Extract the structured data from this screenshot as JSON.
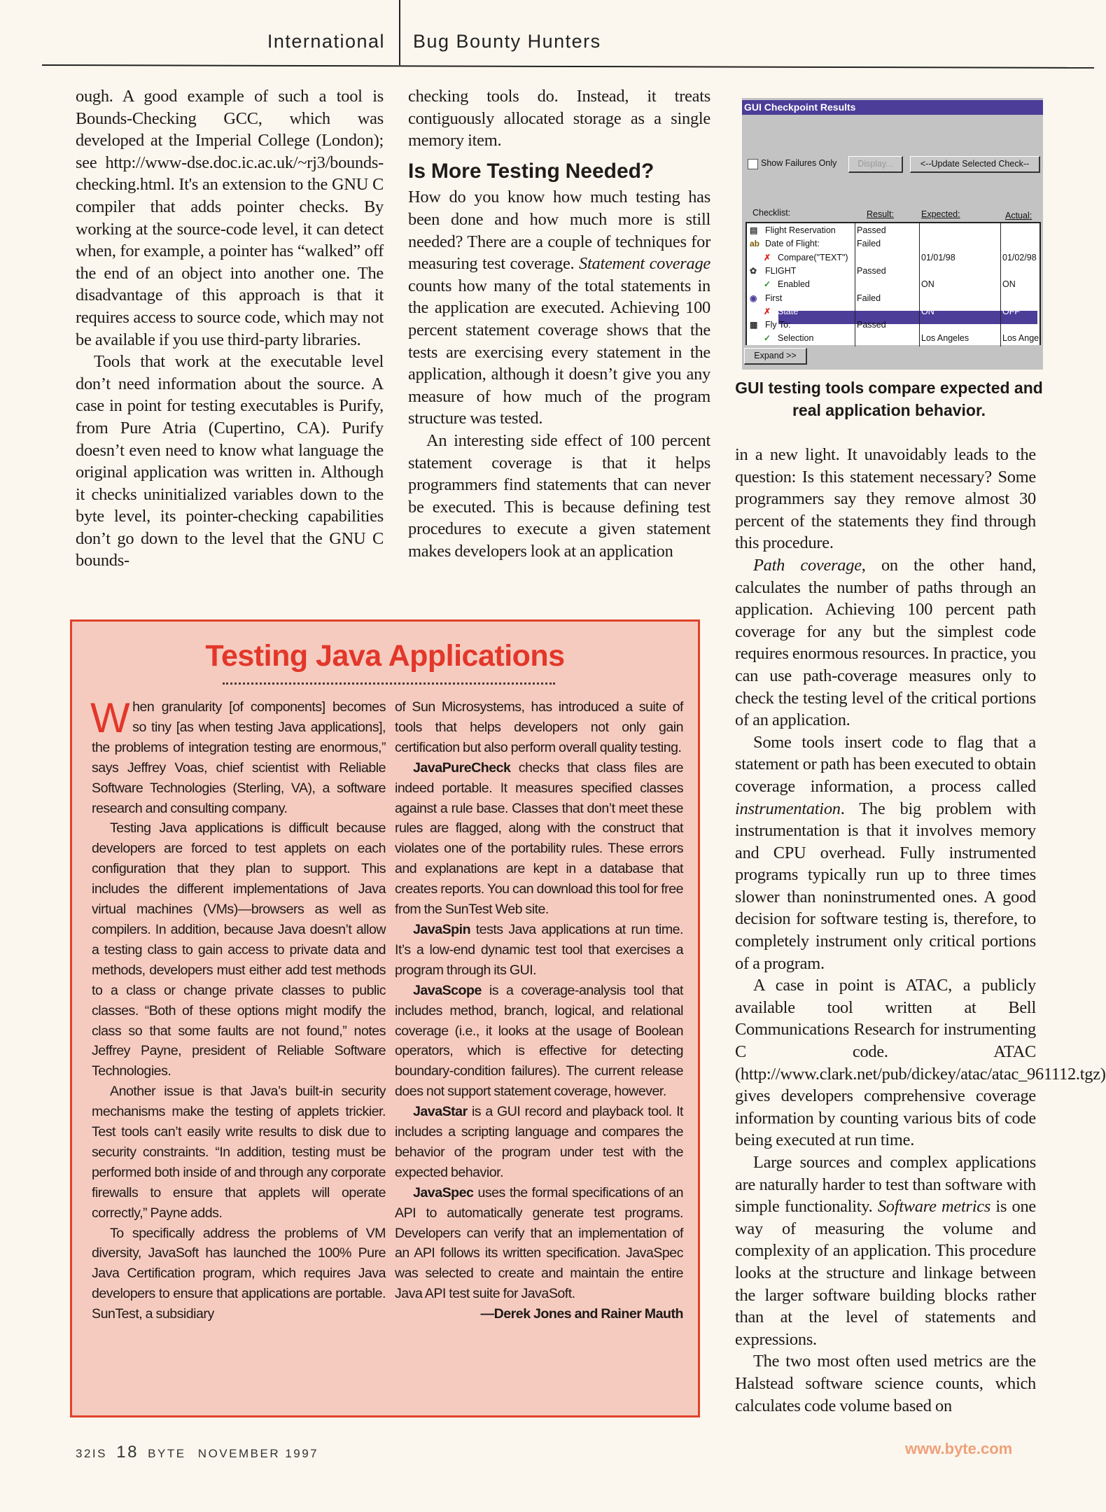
{
  "header": {
    "section": "International",
    "title": "Bug Bounty Hunters"
  },
  "col1": {
    "p1": "ough. A good example of such a tool is Bounds-Checking GCC, which was developed at the Imperial College (London); see http://www-dse.doc.ic.ac.uk/~rj3/bounds-checking.html. It's an extension to the GNU C compiler that adds pointer checks. By working at the source-code level, it can detect when, for example, a pointer has “walked” off the end of an object into another one. The disadvantage of this approach is that it requires access to source code, which may not be available if you use third-party libraries.",
    "p2": "Tools that work at the executable level don’t need information about the source. A case in point for testing executables is Purify, from Pure Atria (Cupertino, CA). Purify doesn’t even need to know what language the original application was written in. Although it checks uninitialized variables down to the byte level, its pointer-checking capabilities don’t go down to the level that the GNU C bounds-"
  },
  "col2": {
    "p1": "checking tools do. Instead, it treats contiguously allocated storage as a single memory item.",
    "heading": "Is More Testing Needed?",
    "p2a": "How do you know how much testing has been done and how much more is still needed? There are a couple of techniques for measuring test coverage. ",
    "p2_term": "Statement coverage",
    "p2b": " counts how many of the total statements in the application are executed. Achieving 100 percent statement coverage shows that the tests are exercising every statement in the application, although it doesn’t give you any measure of how much of the program structure was tested.",
    "p3": "An interesting side effect of 100 percent statement coverage is that it helps programmers find statements that can never be executed. This is because defining test procedures to execute a given statement makes developers look at an application"
  },
  "figure": {
    "window_title": "GUI Checkpoint Results",
    "show_failures_label": "Show Failures Only",
    "display_button": "Display...",
    "update_button": "<--Update Selected Check--",
    "columns": [
      "Checklist:",
      "Result:",
      "Expected:",
      "Actual:"
    ],
    "rows": [
      {
        "icon": "window-icon",
        "name": "Flight Reservation",
        "result": "Passed",
        "expected": "",
        "actual": ""
      },
      {
        "icon": "edit-field-icon",
        "name": "Date of Flight:",
        "result": "Failed",
        "expected": "",
        "actual": ""
      },
      {
        "icon": "cross-icon",
        "name": "Compare(\"TEXT\")",
        "result": "",
        "expected": "01/01/98",
        "actual": "01/02/98"
      },
      {
        "icon": "button-icon",
        "name": "FLIGHT",
        "result": "Passed",
        "expected": "",
        "actual": ""
      },
      {
        "icon": "check-icon",
        "name": "Enabled",
        "result": "",
        "expected": "ON",
        "actual": "ON"
      },
      {
        "icon": "radio-icon",
        "name": "First",
        "result": "Failed",
        "expected": "",
        "actual": ""
      },
      {
        "icon": "cross-icon",
        "name": "State",
        "result": "",
        "expected": "ON",
        "actual": "OFF"
      },
      {
        "icon": "list-icon",
        "name": "Fly To:",
        "result": "Passed",
        "expected": "",
        "actual": ""
      },
      {
        "icon": "check-icon",
        "name": "Selection",
        "result": "",
        "expected": "Los Angeles",
        "actual": "Los Angel"
      }
    ],
    "selected_row": "State",
    "expand_button": "Expand >>",
    "caption": "GUI testing tools compare expected and real application behavior."
  },
  "col3": {
    "p1": "in a new light. It unavoidably leads to the question: Is this statement necessary? Some programmers say they remove almost 30 percent of the statements they find through this procedure.",
    "p2_term": "Path coverage",
    "p2": ", on the other hand, calculates the number of paths through an application. Achieving 100 percent path coverage for any but the simplest code requires enormous resources. In practice, you can use path-coverage measures only to check the testing level of the critical portions of an application.",
    "p3a": "Some tools insert code to flag that a statement or path has been executed to obtain coverage information, a process called ",
    "p3_term": "instrumentation",
    "p3b": ". The big problem with instrumentation is that it involves memory and CPU overhead. Fully instrumented programs typically run up to three times slower than noninstrumented ones. A good decision for software testing is, therefore, to completely instrument only critical portions of a program.",
    "p4": "A case in point is ATAC, a publicly available tool written at Bell Communications Research for instrumenting C code. ATAC (http://www.clark.net/pub/dickey/atac/atac_961112.tgz) gives developers comprehensive coverage information by counting various bits of code being executed at run time.",
    "p5a": "Large sources and complex applications are naturally harder to test than software with simple functionality. ",
    "p5_term": "Software metrics",
    "p5b": " is one way of measuring the volume and complexity of an application. This procedure looks at the structure and linkage between the larger software building blocks rather than at the level of statements and expressions.",
    "p6": "The two most often used metrics are the Halstead software science counts, which calculates code volume based on"
  },
  "sidebar": {
    "title": "Testing Java Applications",
    "dropcap": "W",
    "left": {
      "p1": "hen granularity [of components] becomes so tiny [as when testing Java applications], the problems of integration testing are enormous,” says Jeffrey Voas, chief scientist with Reliable Software Technologies (Sterling, VA), a software research and consulting company.",
      "p2": "Testing Java applications is difficult because developers are forced to test applets on each configuration that they plan to support. This includes the different implementations of Java virtual machines (VMs)—browsers as well as compilers. In addition, because Java doesn’t allow a testing class to gain access to private data and methods, developers must either add test methods to a class or change private classes to public classes. “Both of these options might modify the class so that some faults are not found,” notes Jeffrey Payne, president of Reliable Software Technologies.",
      "p3": "Another issue is that Java’s built-in security mechanisms make the testing of applets trickier. Test tools can’t easily write results to disk due to security constraints. “In addition, testing must be performed both inside of and through any corporate firewalls to ensure that applets will operate correctly,” Payne adds.",
      "p4": "To specifically address the problems of VM diversity, JavaSoft has launched the 100% Pure Java Certification program, which requires Java developers to ensure that applications are portable. SunTest, a subsidiary"
    },
    "right": {
      "p1": "of Sun Microsystems, has introduced a suite of tools that helps developers not only gain certification but also perform overall quality testing.",
      "tools": [
        {
          "name": "JavaPureCheck",
          "text": " checks that class files are indeed portable. It measures specified classes against a rule base. Classes that don’t meet these rules are flagged, along with the construct that violates one of the portability rules. These errors and explanations are kept in a database that creates reports. You can download this tool for free from the SunTest Web site."
        },
        {
          "name": "JavaSpin",
          "text": " tests Java applications at run time. It’s a low-end dynamic test tool that exercises a program through its GUI."
        },
        {
          "name": "JavaScope",
          "text": " is a coverage-analysis tool that includes method, branch, logical, and relational coverage (i.e., it looks at the usage of Boolean operators, which is effective for detecting boundary-condition failures). The current release does not support statement coverage, however."
        },
        {
          "name": "JavaStar",
          "text": " is a GUI record and playback tool. It includes a scripting language and compares the behavior of the program under test with the expected behavior."
        },
        {
          "name": "JavaSpec",
          "text": " uses the formal specifications of an API to automatically generate test programs. Developers can verify that an implementation of an API follows its written specification. JavaSpec was selected to create and maintain the entire Java API test suite for JavaSoft."
        }
      ],
      "byline": "—Derek Jones and Rainer Mauth"
    }
  },
  "footer": {
    "code": "32IS",
    "page": "18",
    "magazine": "BYTE",
    "issue": "NOVEMBER 1997",
    "url": "www.byte.com"
  },
  "colors": {
    "accent_red": "#e2372a",
    "sidebar_bg": "#f6cbbf",
    "window_title": "#4b3d98",
    "url": "#f0a07a"
  }
}
